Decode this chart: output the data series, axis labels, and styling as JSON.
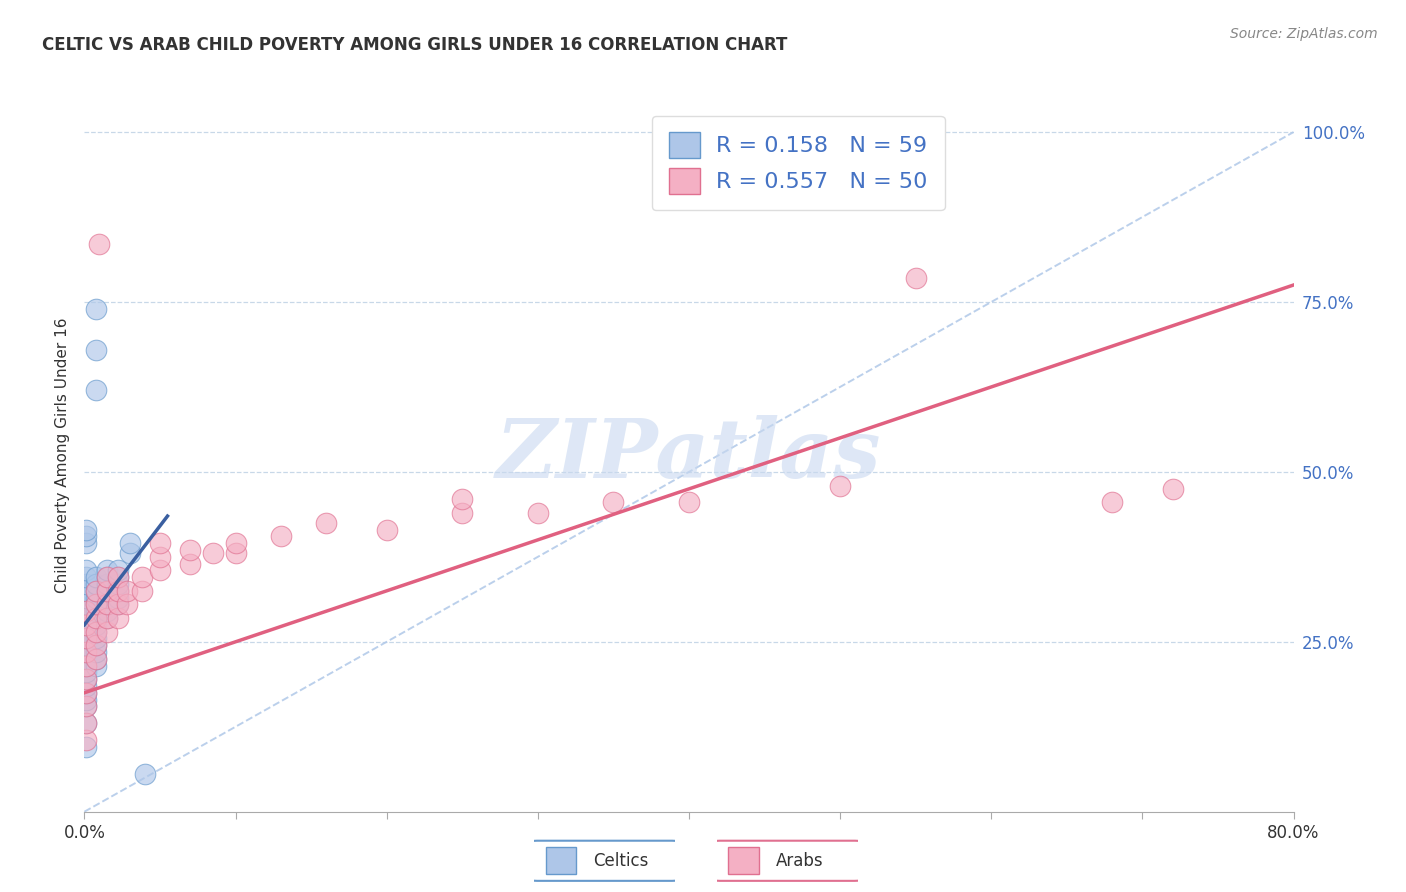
{
  "title": "CELTIC VS ARAB CHILD POVERTY AMONG GIRLS UNDER 16 CORRELATION CHART",
  "source": "Source: ZipAtlas.com",
  "ylabel": "Child Poverty Among Girls Under 16",
  "xlim": [
    0.0,
    0.8
  ],
  "ylim": [
    0.0,
    1.05
  ],
  "xticks": [
    0.0,
    0.1,
    0.2,
    0.3,
    0.4,
    0.5,
    0.6,
    0.7,
    0.8
  ],
  "xtick_labels_show": [
    "0.0%",
    "",
    "",
    "",
    "",
    "",
    "",
    "",
    "80.0%"
  ],
  "yticks_right": [
    0.25,
    0.5,
    0.75,
    1.0
  ],
  "ytick_labels_right": [
    "25.0%",
    "50.0%",
    "75.0%",
    "100.0%"
  ],
  "grid_yticks": [
    0.25,
    0.5,
    0.75,
    1.0
  ],
  "legend_labels": [
    "Celtics",
    "Arabs"
  ],
  "celtic_color": "#aec6e8",
  "arab_color": "#f4b0c4",
  "celtic_edge": "#6699cc",
  "arab_edge": "#e07090",
  "celtic_line_color": "#3a5fa0",
  "arab_line_color": "#e06080",
  "ref_line_color": "#b0c8e8",
  "tick_color": "#4472c4",
  "background_color": "#ffffff",
  "R_celtic": 0.158,
  "N_celtic": 59,
  "R_arab": 0.557,
  "N_arab": 50,
  "watermark": "ZIPatlas",
  "watermark_color": "#c8d8f0",
  "celtic_line_x": [
    0.0,
    0.055
  ],
  "celtic_line_y": [
    0.275,
    0.435
  ],
  "arab_line_x": [
    0.0,
    0.8
  ],
  "arab_line_y": [
    0.175,
    0.775
  ],
  "ref_line_x": [
    0.0,
    0.8
  ],
  "ref_line_y": [
    0.0,
    1.0
  ],
  "celtic_scatter": [
    [
      0.001,
      0.095
    ],
    [
      0.001,
      0.13
    ],
    [
      0.001,
      0.155
    ],
    [
      0.001,
      0.165
    ],
    [
      0.001,
      0.175
    ],
    [
      0.001,
      0.185
    ],
    [
      0.001,
      0.195
    ],
    [
      0.001,
      0.205
    ],
    [
      0.001,
      0.215
    ],
    [
      0.001,
      0.225
    ],
    [
      0.001,
      0.235
    ],
    [
      0.001,
      0.245
    ],
    [
      0.001,
      0.255
    ],
    [
      0.001,
      0.265
    ],
    [
      0.001,
      0.275
    ],
    [
      0.001,
      0.285
    ],
    [
      0.001,
      0.295
    ],
    [
      0.001,
      0.305
    ],
    [
      0.001,
      0.315
    ],
    [
      0.001,
      0.325
    ],
    [
      0.001,
      0.335
    ],
    [
      0.001,
      0.345
    ],
    [
      0.001,
      0.355
    ],
    [
      0.008,
      0.215
    ],
    [
      0.008,
      0.225
    ],
    [
      0.008,
      0.235
    ],
    [
      0.008,
      0.245
    ],
    [
      0.008,
      0.255
    ],
    [
      0.008,
      0.265
    ],
    [
      0.008,
      0.275
    ],
    [
      0.008,
      0.285
    ],
    [
      0.008,
      0.295
    ],
    [
      0.008,
      0.305
    ],
    [
      0.008,
      0.315
    ],
    [
      0.008,
      0.325
    ],
    [
      0.008,
      0.335
    ],
    [
      0.008,
      0.345
    ],
    [
      0.015,
      0.285
    ],
    [
      0.015,
      0.295
    ],
    [
      0.015,
      0.305
    ],
    [
      0.015,
      0.315
    ],
    [
      0.015,
      0.325
    ],
    [
      0.015,
      0.335
    ],
    [
      0.015,
      0.345
    ],
    [
      0.015,
      0.355
    ],
    [
      0.022,
      0.305
    ],
    [
      0.022,
      0.315
    ],
    [
      0.022,
      0.325
    ],
    [
      0.022,
      0.335
    ],
    [
      0.022,
      0.345
    ],
    [
      0.022,
      0.355
    ],
    [
      0.008,
      0.62
    ],
    [
      0.008,
      0.68
    ],
    [
      0.008,
      0.74
    ],
    [
      0.03,
      0.38
    ],
    [
      0.03,
      0.395
    ],
    [
      0.001,
      0.395
    ],
    [
      0.001,
      0.405
    ],
    [
      0.001,
      0.415
    ],
    [
      0.04,
      0.055
    ]
  ],
  "arab_scatter": [
    [
      0.001,
      0.105
    ],
    [
      0.001,
      0.13
    ],
    [
      0.001,
      0.155
    ],
    [
      0.001,
      0.175
    ],
    [
      0.001,
      0.195
    ],
    [
      0.001,
      0.215
    ],
    [
      0.001,
      0.235
    ],
    [
      0.001,
      0.255
    ],
    [
      0.001,
      0.275
    ],
    [
      0.001,
      0.295
    ],
    [
      0.008,
      0.225
    ],
    [
      0.008,
      0.245
    ],
    [
      0.008,
      0.265
    ],
    [
      0.008,
      0.285
    ],
    [
      0.008,
      0.305
    ],
    [
      0.008,
      0.325
    ],
    [
      0.015,
      0.265
    ],
    [
      0.015,
      0.285
    ],
    [
      0.015,
      0.305
    ],
    [
      0.015,
      0.325
    ],
    [
      0.015,
      0.345
    ],
    [
      0.022,
      0.285
    ],
    [
      0.022,
      0.305
    ],
    [
      0.022,
      0.325
    ],
    [
      0.022,
      0.345
    ],
    [
      0.028,
      0.305
    ],
    [
      0.028,
      0.325
    ],
    [
      0.038,
      0.325
    ],
    [
      0.038,
      0.345
    ],
    [
      0.05,
      0.355
    ],
    [
      0.05,
      0.375
    ],
    [
      0.05,
      0.395
    ],
    [
      0.07,
      0.365
    ],
    [
      0.07,
      0.385
    ],
    [
      0.085,
      0.38
    ],
    [
      0.1,
      0.38
    ],
    [
      0.1,
      0.395
    ],
    [
      0.13,
      0.405
    ],
    [
      0.16,
      0.425
    ],
    [
      0.2,
      0.415
    ],
    [
      0.25,
      0.44
    ],
    [
      0.25,
      0.46
    ],
    [
      0.3,
      0.44
    ],
    [
      0.35,
      0.455
    ],
    [
      0.4,
      0.455
    ],
    [
      0.5,
      0.48
    ],
    [
      0.01,
      0.835
    ],
    [
      0.55,
      0.785
    ],
    [
      0.68,
      0.455
    ],
    [
      0.72,
      0.475
    ]
  ]
}
